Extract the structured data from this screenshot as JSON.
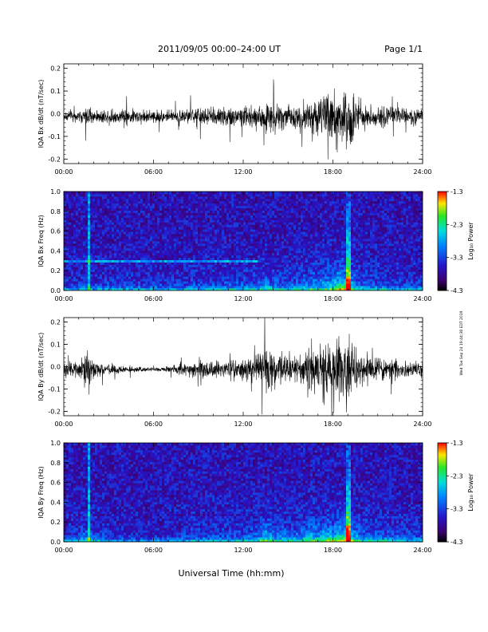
{
  "header": {
    "title": "2011/09/05  00:00–24:00 UT",
    "page": "Page 1/1"
  },
  "footer": {
    "xlabel": "Universal Time (hh:mm)",
    "side_note": "Wed Tue Sep 24 19:44:38 EDT 2019"
  },
  "chart_data": [
    {
      "type": "line",
      "ylabel": "IQA Bx dB/dt (nT/sec)",
      "x_ticks": [
        "00:00",
        "06:00",
        "12:00",
        "18:00",
        "24:00"
      ],
      "x_range_hours": [
        0,
        24
      ],
      "y_ticks": [
        "-0.2",
        "-0.1",
        "0.0",
        "0.1",
        "0.2"
      ],
      "ylim": [
        -0.22,
        0.22
      ],
      "envelope": {
        "hours": [
          0,
          1,
          1.5,
          2,
          3,
          4,
          5,
          6,
          7,
          8,
          9,
          10,
          11,
          12,
          13,
          13.5,
          14,
          15,
          16,
          16.5,
          17,
          17.5,
          18,
          18.5,
          19,
          19.5,
          20,
          21,
          22,
          23,
          24
        ],
        "amplitude": [
          0.03,
          0.03,
          0.06,
          0.03,
          0.04,
          0.045,
          0.04,
          0.035,
          0.03,
          0.04,
          0.05,
          0.05,
          0.06,
          0.06,
          0.07,
          0.09,
          0.08,
          0.06,
          0.08,
          0.11,
          0.1,
          0.13,
          0.14,
          0.2,
          0.18,
          0.1,
          0.07,
          0.06,
          0.05,
          0.045,
          0.04
        ]
      }
    },
    {
      "type": "heatmap",
      "ylabel": "IQA Bx Freq (Hz)",
      "x_ticks": [
        "00:00",
        "06:00",
        "12:00",
        "18:00",
        "24:00"
      ],
      "y_ticks": [
        "0.0",
        "0.2",
        "0.4",
        "0.6",
        "0.8",
        "1.0"
      ],
      "ylim": [
        0,
        1
      ],
      "colorbar": {
        "label": "Log₁₀ Power",
        "ticks": [
          "-1.3",
          "-2.3",
          "-3.3",
          "-4.3"
        ],
        "range": [
          -4.3,
          -1.3
        ]
      },
      "notable_features": [
        {
          "time_hours": 1.7,
          "kind": "broadband spike"
        },
        {
          "time_hours": 19.0,
          "kind": "broadband spike"
        },
        {
          "freq_hz": 0.3,
          "kind": "narrowband line",
          "span_hours": [
            0,
            13
          ]
        }
      ]
    },
    {
      "type": "line",
      "ylabel": "IQA By dB/dt (nT/sec)",
      "x_ticks": [
        "00:00",
        "06:00",
        "12:00",
        "18:00",
        "24:00"
      ],
      "x_range_hours": [
        0,
        24
      ],
      "y_ticks": [
        "-0.2",
        "-0.1",
        "0.0",
        "0.1",
        "0.2"
      ],
      "ylim": [
        -0.22,
        0.22
      ],
      "envelope": {
        "hours": [
          0,
          1,
          1.5,
          2,
          3,
          4,
          5,
          6,
          7,
          8,
          9,
          10,
          11,
          12,
          13,
          13.5,
          14,
          15,
          16,
          16.5,
          17,
          17.5,
          18,
          18.5,
          19,
          19.5,
          20,
          21,
          22,
          23,
          24
        ],
        "amplitude": [
          0.04,
          0.04,
          0.1,
          0.05,
          0.03,
          0.02,
          0.015,
          0.01,
          0.02,
          0.03,
          0.05,
          0.05,
          0.05,
          0.06,
          0.08,
          0.15,
          0.09,
          0.08,
          0.1,
          0.14,
          0.12,
          0.16,
          0.15,
          0.2,
          0.19,
          0.12,
          0.09,
          0.07,
          0.06,
          0.05,
          0.05
        ]
      }
    },
    {
      "type": "heatmap",
      "ylabel": "IQA By Freq (Hz)",
      "x_ticks": [
        "00:00",
        "06:00",
        "12:00",
        "18:00",
        "24:00"
      ],
      "y_ticks": [
        "0.0",
        "0.2",
        "0.4",
        "0.6",
        "0.8",
        "1.0"
      ],
      "ylim": [
        0,
        1
      ],
      "colorbar": {
        "label": "Log₁₀ Power",
        "ticks": [
          "-1.3",
          "-2.3",
          "-3.3",
          "-4.3"
        ],
        "range": [
          -4.3,
          -1.3
        ]
      },
      "notable_features": [
        {
          "time_hours": 1.7,
          "kind": "broadband spike"
        },
        {
          "time_hours": 19.0,
          "kind": "broadband spike"
        }
      ]
    }
  ]
}
